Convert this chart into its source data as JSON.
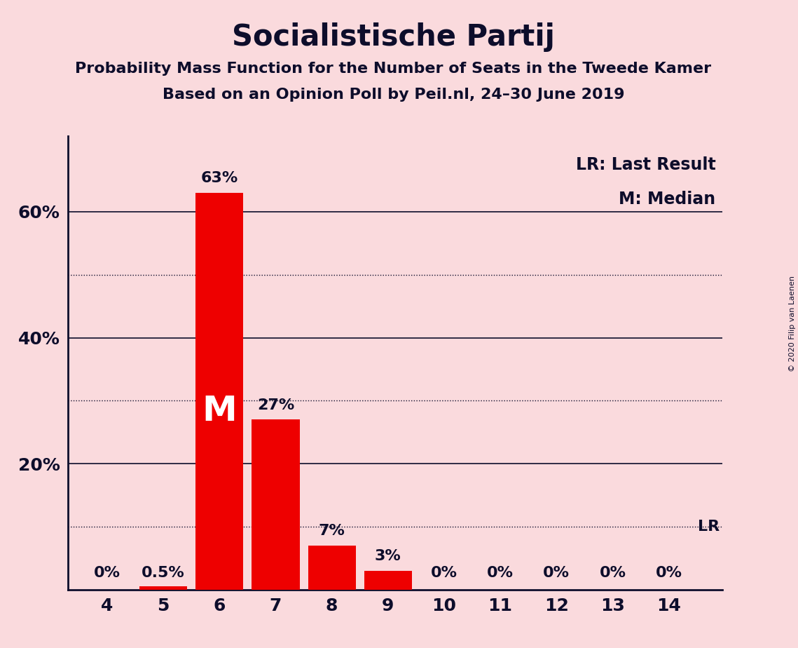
{
  "title": "Socialistische Partij",
  "subtitle1": "Probability Mass Function for the Number of Seats in the Tweede Kamer",
  "subtitle2": "Based on an Opinion Poll by Peil.nl, 24–30 June 2019",
  "copyright": "© 2020 Filip van Laenen",
  "seats": [
    4,
    5,
    6,
    7,
    8,
    9,
    10,
    11,
    12,
    13,
    14
  ],
  "probabilities": [
    0.0,
    0.5,
    63.0,
    27.0,
    7.0,
    3.0,
    0.0,
    0.0,
    0.0,
    0.0,
    0.0
  ],
  "bar_color": "#EE0000",
  "background_color": "#FADADD",
  "text_color": "#0D0D2B",
  "median_seat": 6,
  "median_label": "M",
  "lr_value": 10.0,
  "legend_lr": "LR: Last Result",
  "legend_m": "M: Median",
  "solid_grid": [
    20,
    40,
    60
  ],
  "dotted_grid": [
    10,
    30,
    50
  ],
  "ylim": 72,
  "bar_labels": [
    "0%",
    "0.5%",
    "63%",
    "27%",
    "7%",
    "3%",
    "0%",
    "0%",
    "0%",
    "0%",
    "0%"
  ]
}
